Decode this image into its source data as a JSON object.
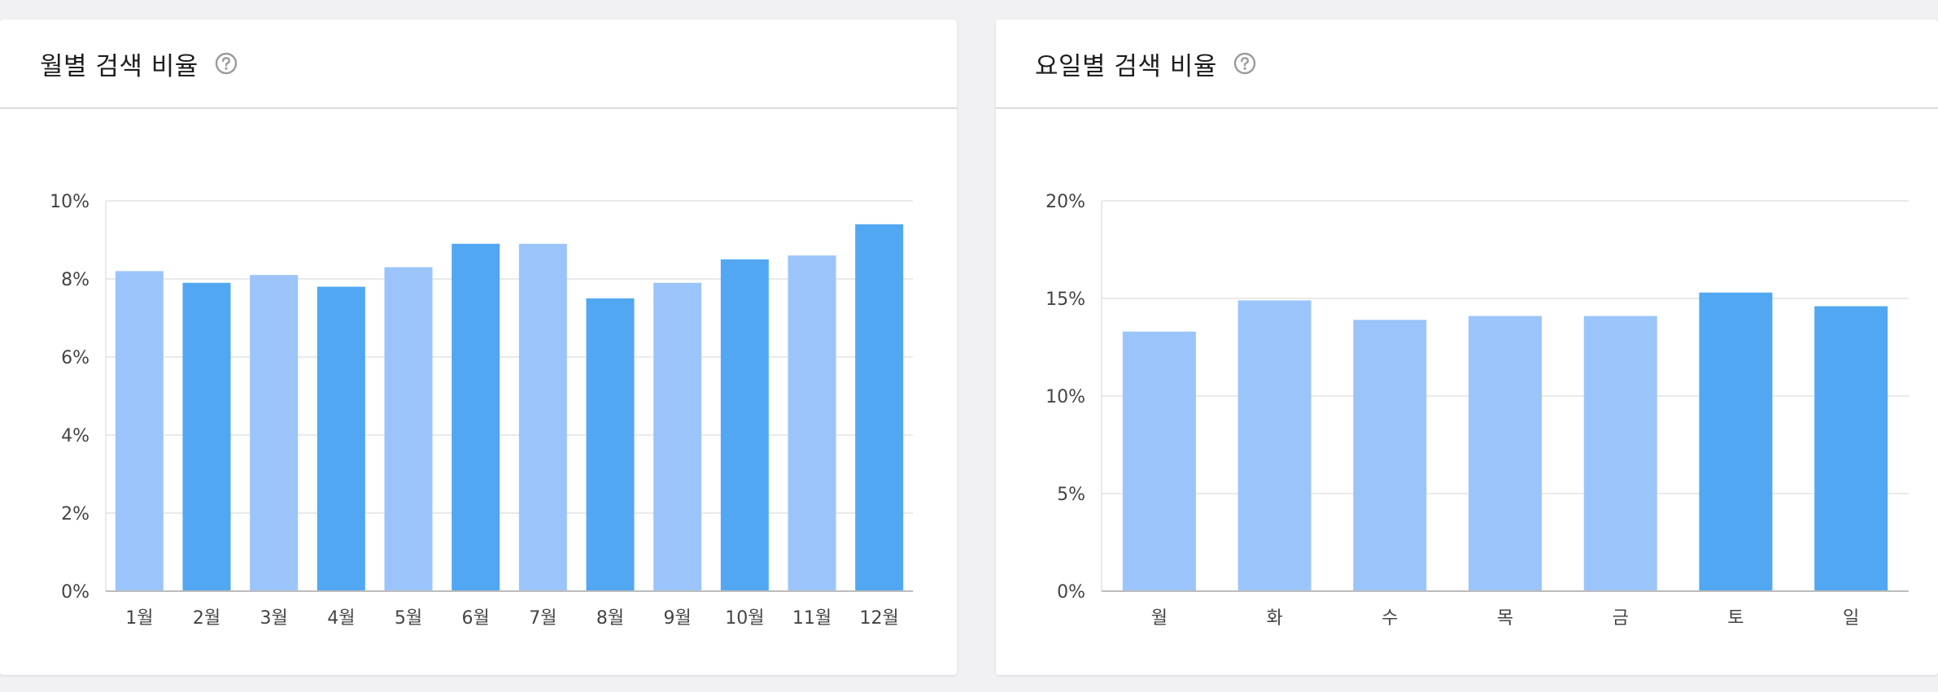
{
  "colors": {
    "bar_light": "#9bc5fa",
    "bar_dark": "#51a7f2",
    "grid": "#e3e3e3",
    "axis": "#bcbcbc",
    "help_icon": "#9b9b9b"
  },
  "panels": {
    "monthly": {
      "title": "월별 검색 비율",
      "help_icon": "question-circle-icon"
    },
    "weekday": {
      "title": "요일별 검색 비율",
      "help_icon": "question-circle-icon"
    }
  },
  "chart_data": [
    {
      "id": "monthly",
      "type": "bar",
      "title": "월별 검색 비율",
      "xlabel": "",
      "ylabel": "",
      "categories": [
        "1월",
        "2월",
        "3월",
        "4월",
        "5월",
        "6월",
        "7월",
        "8월",
        "9월",
        "10월",
        "11월",
        "12월"
      ],
      "values": [
        8.2,
        7.9,
        8.1,
        7.8,
        8.3,
        8.9,
        8.9,
        7.5,
        7.9,
        8.5,
        8.6,
        9.4
      ],
      "shades": [
        "light",
        "dark",
        "light",
        "dark",
        "light",
        "dark",
        "light",
        "dark",
        "light",
        "dark",
        "light",
        "dark"
      ],
      "ylim": [
        0,
        10
      ],
      "yticks": [
        0,
        2,
        4,
        6,
        8,
        10
      ],
      "ytick_labels": [
        "0%",
        "2%",
        "4%",
        "6%",
        "8%",
        "10%"
      ],
      "grid": true,
      "legend": "none"
    },
    {
      "id": "weekday",
      "type": "bar",
      "title": "요일별 검색 비율",
      "xlabel": "",
      "ylabel": "",
      "categories": [
        "월",
        "화",
        "수",
        "목",
        "금",
        "토",
        "일"
      ],
      "values": [
        13.3,
        14.9,
        13.9,
        14.1,
        14.1,
        15.3,
        14.6
      ],
      "shades": [
        "light",
        "light",
        "light",
        "light",
        "light",
        "dark",
        "dark"
      ],
      "ylim": [
        0,
        20
      ],
      "yticks": [
        0,
        5,
        10,
        15,
        20
      ],
      "ytick_labels": [
        "0%",
        "5%",
        "10%",
        "15%",
        "20%"
      ],
      "grid": true,
      "legend": "none"
    }
  ]
}
